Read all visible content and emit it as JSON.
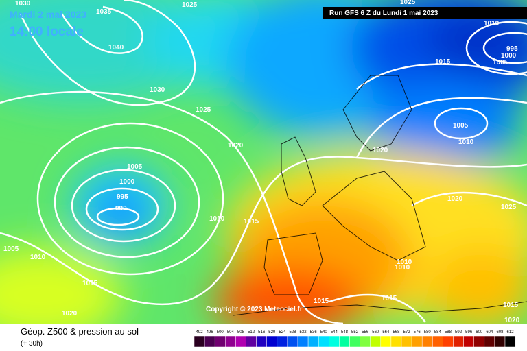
{
  "header": {
    "date": "Mardi 2 mai 2023",
    "time": "14:00 locale",
    "run": "Run GFS 6 Z du Lundi 1 mai 2023"
  },
  "map": {
    "copyright": "Copyright © 2023 Meteociel.fr",
    "isobar_labels": [
      1030,
      1035,
      1040,
      1025,
      1030,
      1025,
      1020,
      1005,
      1000,
      995,
      990,
      1010,
      1015,
      1005,
      1010,
      1015,
      1020,
      1025,
      1010,
      995,
      1000,
      1005,
      1015,
      1005,
      1010,
      1020,
      1020,
      1025,
      1010,
      1010,
      1015,
      1015,
      1015,
      1020
    ]
  },
  "footer": {
    "title": "Géop. Z500 & pression au sol",
    "lead": "(+ 30h)"
  },
  "scale": {
    "values": [
      492,
      496,
      500,
      504,
      508,
      512,
      516,
      520,
      524,
      528,
      532,
      536,
      540,
      544,
      548,
      552,
      556,
      560,
      564,
      568,
      572,
      576,
      580,
      584,
      588,
      592,
      596,
      600,
      604,
      608,
      612
    ],
    "colors": [
      "#2a0020",
      "#4a0050",
      "#700070",
      "#900090",
      "#b000b0",
      "#6000a0",
      "#2000c0",
      "#0000d0",
      "#0020e0",
      "#0050f0",
      "#0080ff",
      "#00b0ff",
      "#00e0ff",
      "#00ffe0",
      "#00ffa0",
      "#40ff60",
      "#80ff40",
      "#c0ff00",
      "#ffff00",
      "#ffe000",
      "#ffc000",
      "#ffa000",
      "#ff8000",
      "#ff6000",
      "#ff4000",
      "#e02000",
      "#c00000",
      "#900000",
      "#600000",
      "#300000",
      "#000000"
    ]
  }
}
